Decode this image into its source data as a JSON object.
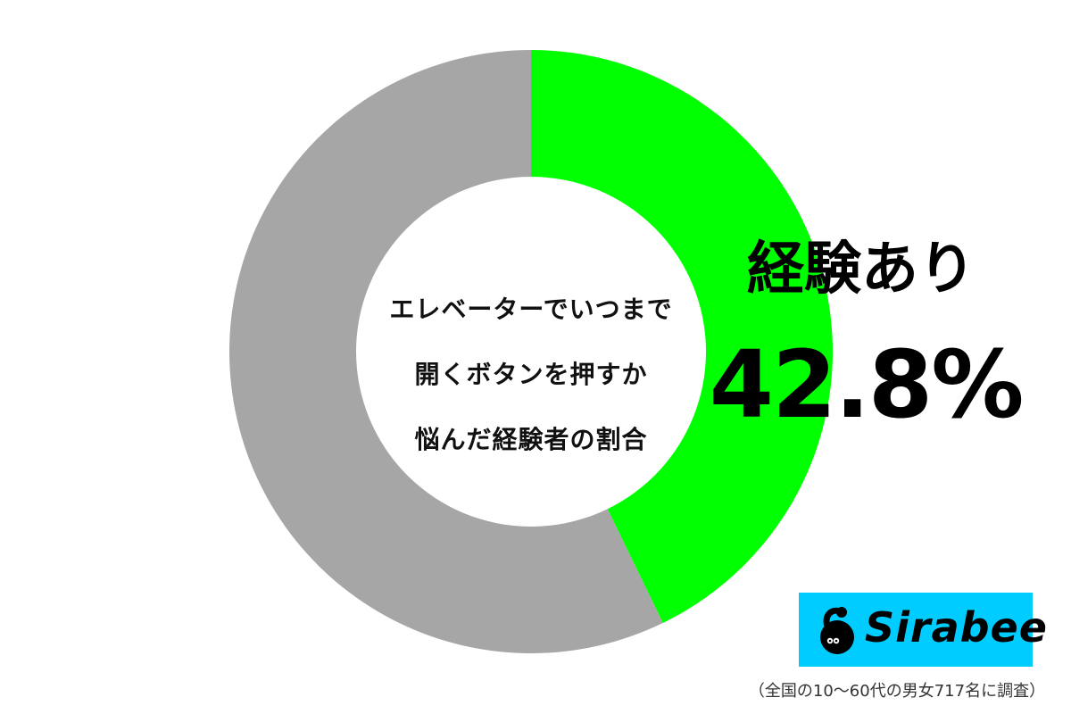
{
  "chart_data": {
    "type": "pie",
    "donut": true,
    "title_lines": [
      "エレベーターでいつまで",
      "開くボタンを押すか",
      "悩んだ経験者の割合"
    ],
    "slices": [
      {
        "label": "経験あり",
        "value": 42.8,
        "value_label": "42.8%",
        "color": "#00ff00"
      },
      {
        "label": "",
        "value": 57.2,
        "color": "#a6a6a6"
      }
    ],
    "start_angle": "top",
    "direction": "clockwise"
  },
  "logo": {
    "text": "Sirabee",
    "background": "#00ccff"
  },
  "footnote": "（全国の10〜60代の男女717名に調査）"
}
